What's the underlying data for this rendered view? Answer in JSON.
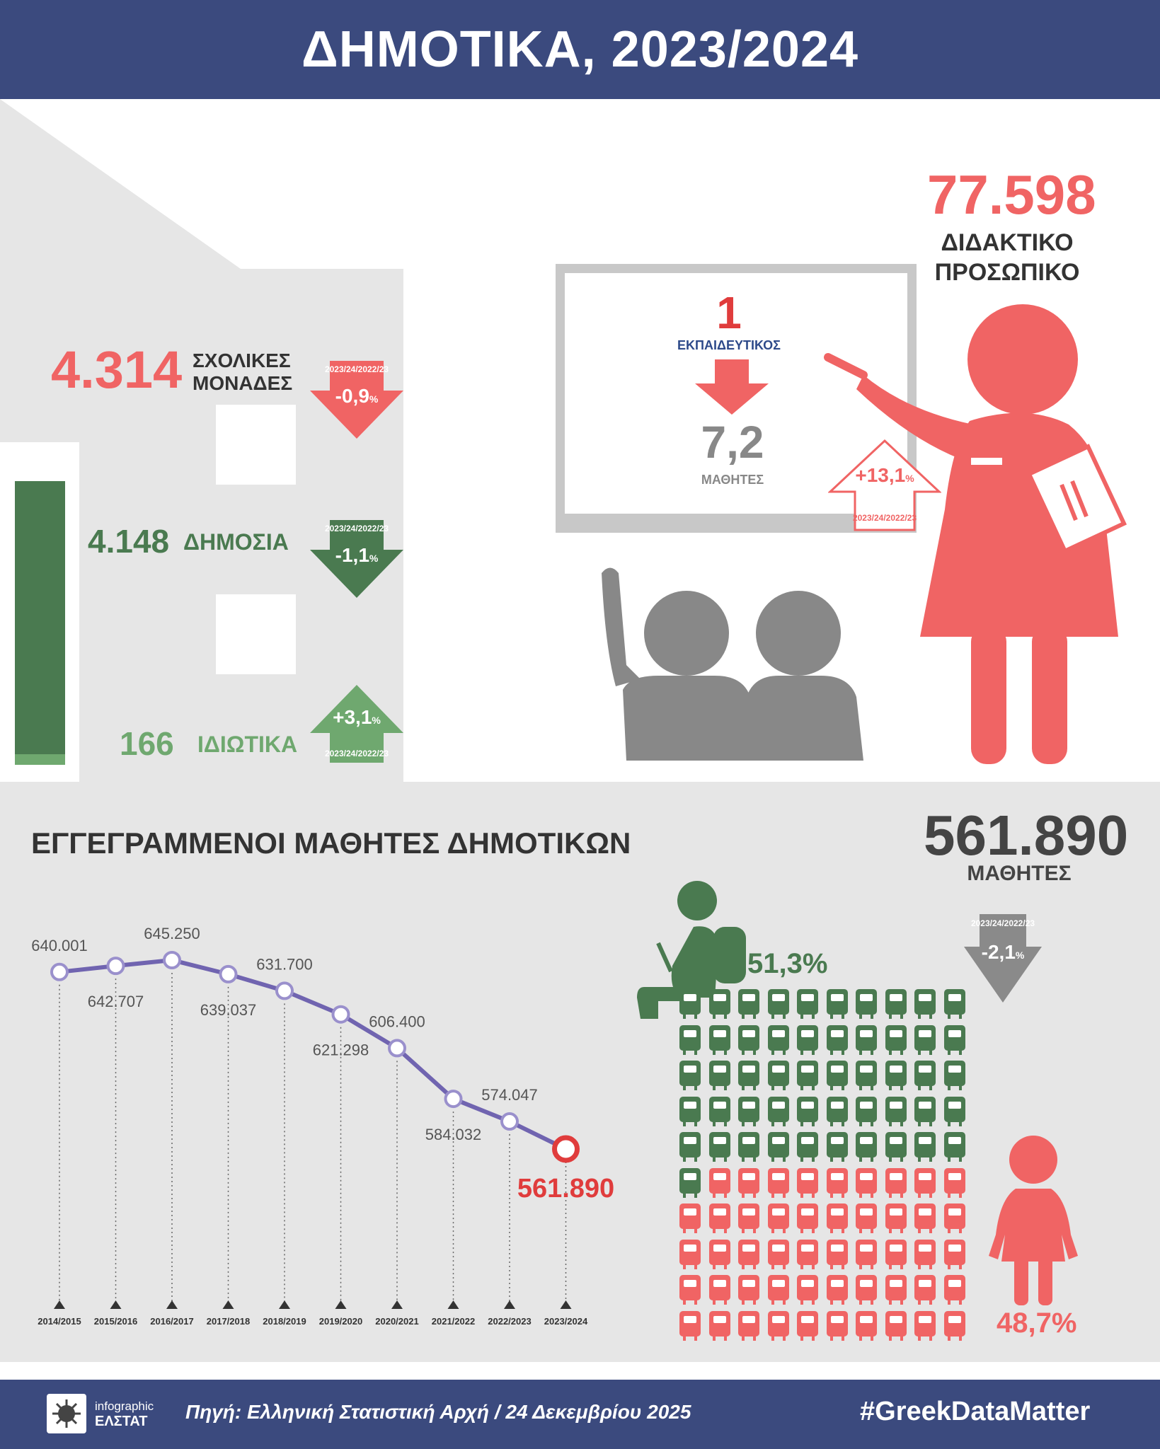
{
  "header": {
    "title": "ΔΗΜΟΤΙΚΑ, 2023/2024"
  },
  "schools": {
    "total": {
      "value": "4.314",
      "label_line1": "ΣΧΟΛΙΚΕΣ",
      "label_line2": "ΜΟΝΑΔΕΣ",
      "period": "2023/24/2022/23",
      "change": "-0,9",
      "unit": "%"
    },
    "public": {
      "value": "4.148",
      "label": "ΔΗΜΟΣΙΑ",
      "period": "2023/24/2022/23",
      "change": "-1,1",
      "unit": "%"
    },
    "private": {
      "value": "166",
      "label": "ΙΔΙΩΤΙΚΑ",
      "period": "2023/24/2022/23",
      "change": "+3,1",
      "unit": "%"
    },
    "public_share": 0.9615,
    "colors": {
      "total": "#f06464",
      "public": "#4a7a50",
      "private": "#6fa86f"
    }
  },
  "teachers": {
    "value": "77.598",
    "label_line1": "ΔΙΔΑΚΤΙΚΟ",
    "label_line2": "ΠΡΟΣΩΠΙΚΟ",
    "ratio_top": "1",
    "ratio_top_label": "ΕΚΠΑΙΔΕΥΤΙΚΟΣ",
    "ratio_bottom": "7,2",
    "ratio_bottom_label": "ΜΑΘΗΤΕΣ",
    "change": "+13,1",
    "unit": "%",
    "period": "2023/24/2022/23"
  },
  "students": {
    "section_title": "ΕΓΓΕΓΡΑΜΜΕΝΟΙ ΜΑΘΗΤΕΣ ΔΗΜΟΤΙΚΩΝ",
    "total": "561.890",
    "total_label": "ΜΑΘΗΤΕΣ",
    "period": "2023/24/2022/23",
    "change": "-2,1",
    "unit": "%",
    "boys_pct": "51,3%",
    "girls_pct": "48,7%",
    "boys_share": 0.513,
    "girls_share": 0.487,
    "icon_boy": "boy-student-icon",
    "icon_girl": "girl-student-icon"
  },
  "chart_data": {
    "type": "line",
    "categories": [
      "2014/2015",
      "2015/2016",
      "2016/2017",
      "2017/2018",
      "2018/2019",
      "2019/2020",
      "2020/2021",
      "2021/2022",
      "2022/2023",
      "2023/2024"
    ],
    "values": [
      640001,
      642707,
      645250,
      639037,
      631700,
      621298,
      606400,
      584032,
      574047,
      561890
    ],
    "value_labels": [
      "640.001",
      "642.707",
      "645.250",
      "639.037",
      "631.700",
      "621.298",
      "606.400",
      "584.032",
      "574.047",
      "561.890"
    ],
    "title": "ΕΓΓΕΓΡΑΜΜΕΝΟΙ ΜΑΘΗΤΕΣ ΔΗΜΟΤΙΚΩΝ",
    "line_color": "#7064b0",
    "highlight_color": "#e03c3c"
  },
  "footer": {
    "logo_line1": "infographic",
    "logo_line2": "ΕΛΣΤΑΤ",
    "source": "Πηγή: Ελληνική Στατιστική Αρχή / 24 Δεκεμβρίου 2025",
    "hashtag": "#GreekDataMatter"
  }
}
